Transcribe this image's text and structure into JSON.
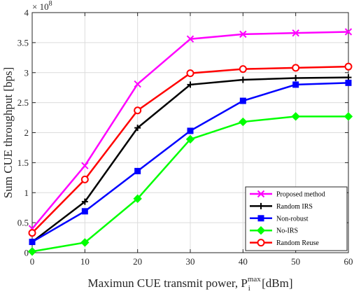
{
  "chart_data": {
    "type": "line",
    "title": "",
    "xlabel": {
      "prefix": "Maximun CUE transmit power, P",
      "sub": "i",
      "sup": "max",
      "suffix": " [dBm]"
    },
    "ylabel": "Sum CUE throughput [bps]",
    "y_multiplier": "× 10",
    "y_multiplier_exp": "8",
    "x": [
      0,
      10,
      20,
      30,
      40,
      50,
      60
    ],
    "xlim": [
      0,
      60
    ],
    "ylim": [
      0,
      4
    ],
    "x_ticks": [
      "0",
      "10",
      "20",
      "30",
      "40",
      "50",
      "60"
    ],
    "y_ticks": [
      "0",
      "0.5",
      "1",
      "1.5",
      "2",
      "2.5",
      "3",
      "3.5",
      "4"
    ],
    "grid": true,
    "legend_position": "bottom-right",
    "series": [
      {
        "name": "Proposed method",
        "color": "#ff00ff",
        "marker": "x",
        "values": [
          0.4,
          1.45,
          2.81,
          3.56,
          3.64,
          3.66,
          3.68
        ]
      },
      {
        "name": "Random IRS",
        "color": "#000000",
        "marker": "plus",
        "values": [
          0.18,
          0.85,
          2.08,
          2.8,
          2.88,
          2.91,
          2.92
        ]
      },
      {
        "name": "Non-robust",
        "color": "#0000ff",
        "marker": "square",
        "values": [
          0.18,
          0.69,
          1.36,
          2.03,
          2.53,
          2.8,
          2.83
        ]
      },
      {
        "name": "No-IRS",
        "color": "#00ff00",
        "marker": "diamond",
        "values": [
          0.02,
          0.17,
          0.9,
          1.89,
          2.18,
          2.27,
          2.27
        ]
      },
      {
        "name": "Random Reuse",
        "color": "#ff0000",
        "marker": "circle",
        "values": [
          0.33,
          1.22,
          2.37,
          2.99,
          3.06,
          3.08,
          3.1
        ]
      }
    ]
  }
}
